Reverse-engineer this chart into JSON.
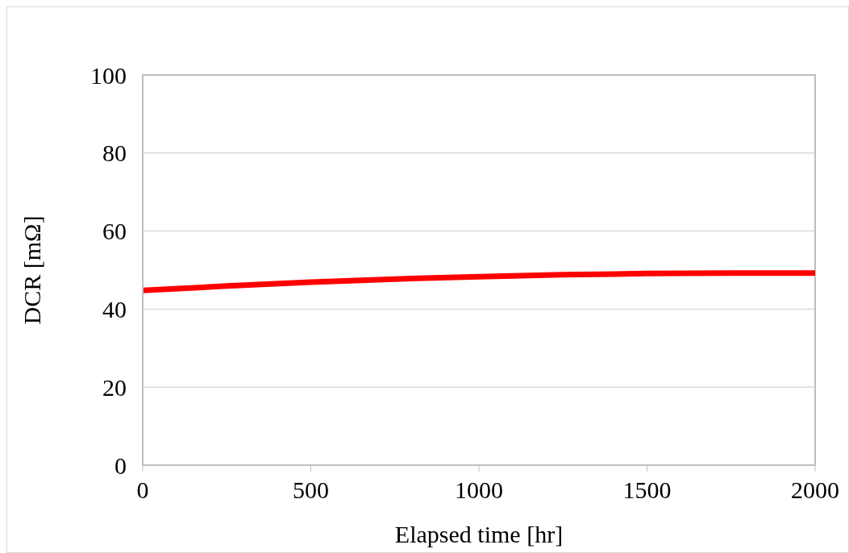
{
  "chart_data": {
    "type": "line",
    "xlabel": "Elapsed time [hr]",
    "ylabel": "DCR [mΩ]",
    "x": [
      0,
      250,
      500,
      750,
      1000,
      1250,
      1500,
      1750,
      2000
    ],
    "series": [
      {
        "color": "#ff0000",
        "values": [
          44.8,
          45.9,
          46.9,
          47.7,
          48.3,
          48.8,
          49.1,
          49.2,
          49.2
        ]
      }
    ],
    "xlim": [
      0,
      2000
    ],
    "xticks": [
      0,
      500,
      1000,
      1500,
      2000
    ],
    "ylim": [
      0,
      100
    ],
    "yticks": [
      0,
      20,
      40,
      60,
      80,
      100
    ],
    "grid": "y",
    "legend": false,
    "marker": "none",
    "line_style": "solid"
  }
}
